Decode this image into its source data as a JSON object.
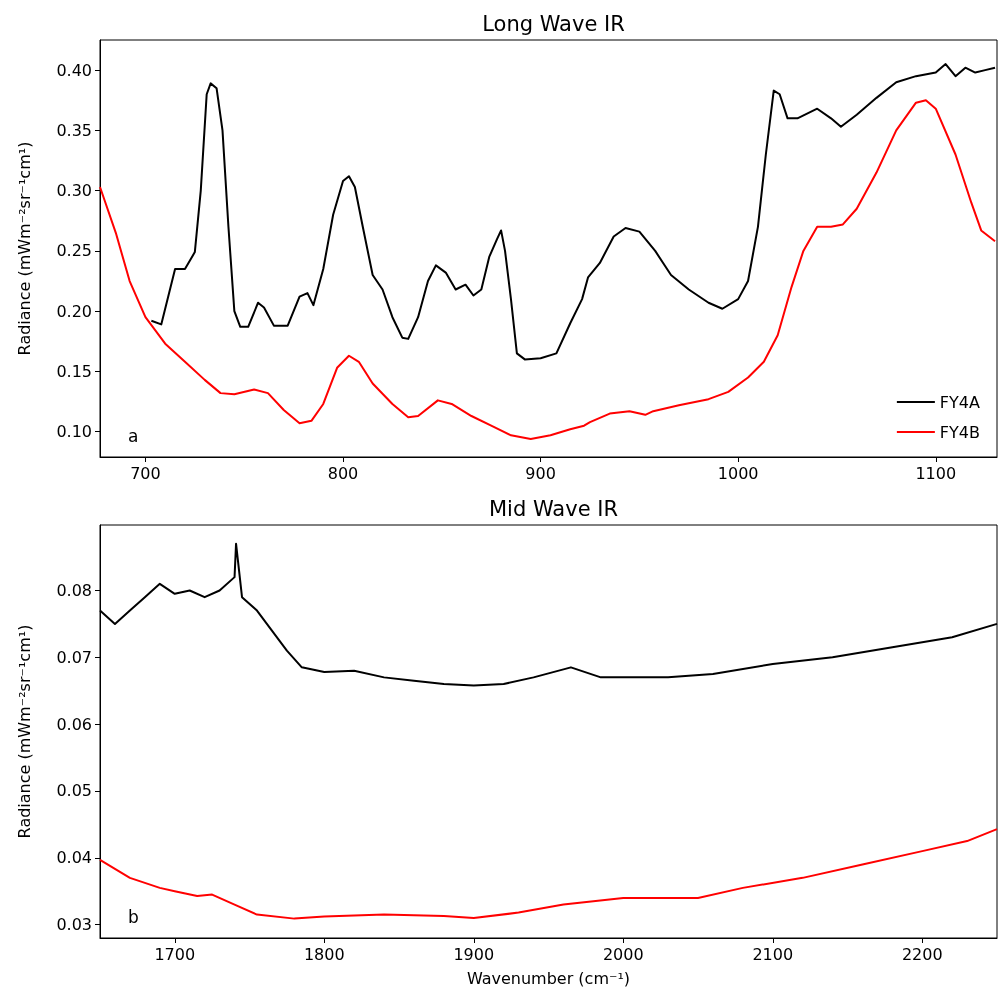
{
  "chart_data": [
    {
      "type": "line",
      "title": "Long Wave IR",
      "ylabel": "Radiance (mWm⁻²sr⁻¹cm¹)",
      "annotations": [
        "a"
      ],
      "legend": "bottom right",
      "grid": false,
      "marker": "none",
      "line_style": "solid",
      "xlim": [
        677,
        1131
      ],
      "xticks": [
        700,
        800,
        900,
        1000,
        1100
      ],
      "ylim": [
        0.079,
        0.425
      ],
      "yticks": [
        {
          "value": 0.1,
          "label": "0.10"
        },
        0.15,
        {
          "value": 0.2,
          "label": "0.20"
        },
        0.25,
        {
          "value": 0.3,
          "label": "0.30"
        },
        0.35,
        {
          "value": 0.4,
          "label": "0.40"
        }
      ],
      "series": [
        {
          "name": "FY4A",
          "color": "#000000",
          "x": [
            703,
            708,
            715,
            720,
            725,
            728,
            731,
            733,
            736,
            739,
            742,
            745,
            748,
            752,
            757,
            760,
            765,
            772,
            778,
            782,
            785,
            790,
            795,
            800,
            803,
            806,
            810,
            815,
            820,
            825,
            830,
            833,
            838,
            843,
            847,
            852,
            857,
            862,
            866,
            870,
            874,
            878,
            880,
            882,
            885,
            888,
            892,
            900,
            908,
            915,
            921,
            924,
            930,
            937,
            943,
            950,
            958,
            966,
            975,
            985,
            992,
            1000,
            1005,
            1010,
            1014,
            1018,
            1021,
            1025,
            1030,
            1040,
            1047,
            1052,
            1060,
            1070,
            1080,
            1090,
            1100,
            1105,
            1110,
            1115,
            1120,
            1125,
            1130
          ],
          "values": [
            0.192,
            0.189,
            0.235,
            0.235,
            0.249,
            0.3,
            0.38,
            0.389,
            0.385,
            0.35,
            0.27,
            0.2,
            0.187,
            0.187,
            0.207,
            0.203,
            0.188,
            0.188,
            0.212,
            0.215,
            0.205,
            0.235,
            0.28,
            0.308,
            0.312,
            0.303,
            0.27,
            0.23,
            0.218,
            0.195,
            0.178,
            0.177,
            0.195,
            0.225,
            0.238,
            0.232,
            0.218,
            0.222,
            0.213,
            0.218,
            0.245,
            0.26,
            0.267,
            0.25,
            0.21,
            0.165,
            0.16,
            0.161,
            0.165,
            0.19,
            0.21,
            0.228,
            0.24,
            0.262,
            0.269,
            0.266,
            0.25,
            0.23,
            0.218,
            0.207,
            0.202,
            0.21,
            0.225,
            0.27,
            0.33,
            0.383,
            0.38,
            0.36,
            0.36,
            0.368,
            0.36,
            0.353,
            0.363,
            0.377,
            0.39,
            0.395,
            0.398,
            0.405,
            0.395,
            0.402,
            0.398,
            0.4,
            0.402
          ]
        },
        {
          "name": "FY4B",
          "color": "#ff0000",
          "x": [
            677,
            685,
            692,
            700,
            710,
            720,
            730,
            738,
            745,
            755,
            762,
            770,
            778,
            784,
            790,
            797,
            803,
            808,
            815,
            825,
            833,
            838,
            848,
            855,
            865,
            875,
            885,
            895,
            905,
            915,
            922,
            925,
            935,
            945,
            953,
            957,
            970,
            985,
            995,
            1005,
            1013,
            1020,
            1027,
            1033,
            1040,
            1047,
            1053,
            1060,
            1070,
            1080,
            1090,
            1095,
            1100,
            1110,
            1118,
            1123,
            1130
          ],
          "values": [
            0.303,
            0.265,
            0.225,
            0.195,
            0.173,
            0.158,
            0.143,
            0.132,
            0.131,
            0.135,
            0.132,
            0.118,
            0.107,
            0.109,
            0.123,
            0.153,
            0.163,
            0.158,
            0.14,
            0.123,
            0.112,
            0.113,
            0.126,
            0.123,
            0.113,
            0.105,
            0.097,
            0.094,
            0.097,
            0.102,
            0.105,
            0.108,
            0.115,
            0.117,
            0.114,
            0.117,
            0.122,
            0.127,
            0.133,
            0.145,
            0.158,
            0.18,
            0.22,
            0.25,
            0.27,
            0.27,
            0.272,
            0.285,
            0.315,
            0.35,
            0.373,
            0.375,
            0.368,
            0.33,
            0.29,
            0.267,
            0.258
          ]
        }
      ]
    },
    {
      "type": "line",
      "title": "Mid Wave IR",
      "xlabel": "Wavenumber (cm⁻¹)",
      "ylabel": "Radiance (mWm⁻²sr⁻¹cm¹)",
      "annotations": [
        "b"
      ],
      "grid": false,
      "marker": "none",
      "line_style": "solid",
      "xlim": [
        1650,
        2250
      ],
      "xticks": [
        1700,
        1800,
        1900,
        2000,
        2100,
        2200
      ],
      "ylim": [
        0.028,
        0.0898
      ],
      "yticks": [
        0.03,
        0.04,
        0.05,
        0.06,
        0.07,
        0.08
      ],
      "series": [
        {
          "color": "#000000",
          "x": [
            1650,
            1660,
            1670,
            1680,
            1690,
            1700,
            1710,
            1720,
            1730,
            1740,
            1741,
            1745,
            1755,
            1765,
            1775,
            1785,
            1800,
            1820,
            1840,
            1860,
            1880,
            1900,
            1920,
            1940,
            1965,
            1985,
            2000,
            2030,
            2060,
            2100,
            2140,
            2180,
            2220,
            2250
          ],
          "values": [
            0.077,
            0.075,
            0.077,
            0.079,
            0.081,
            0.0795,
            0.08,
            0.079,
            0.08,
            0.082,
            0.087,
            0.079,
            0.077,
            0.074,
            0.071,
            0.0685,
            0.0678,
            0.068,
            0.067,
            0.0665,
            0.066,
            0.0658,
            0.066,
            0.067,
            0.0685,
            0.067,
            0.067,
            0.067,
            0.0675,
            0.069,
            0.07,
            0.0715,
            0.073,
            0.075
          ]
        },
        {
          "color": "#ff0000",
          "x": [
            1650,
            1670,
            1690,
            1700,
            1715,
            1725,
            1740,
            1755,
            1780,
            1800,
            1840,
            1880,
            1900,
            1930,
            1960,
            2000,
            2050,
            2080,
            2120,
            2160,
            2200,
            2230,
            2250
          ],
          "values": [
            0.0397,
            0.037,
            0.0355,
            0.035,
            0.0343,
            0.0345,
            0.033,
            0.0315,
            0.0309,
            0.0312,
            0.0315,
            0.0313,
            0.031,
            0.0318,
            0.033,
            0.034,
            0.034,
            0.0355,
            0.037,
            0.039,
            0.041,
            0.0425,
            0.0443
          ]
        }
      ]
    }
  ]
}
